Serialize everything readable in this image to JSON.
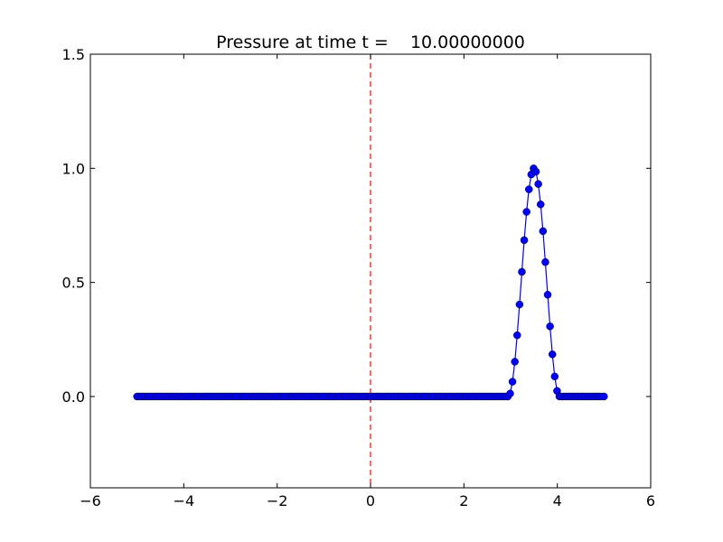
{
  "chart_data": {
    "type": "line",
    "title": "Pressure at time t =    10.00000000",
    "xlabel": "",
    "ylabel": "",
    "xlim": [
      -6,
      6
    ],
    "ylim": [
      -0.4,
      1.5
    ],
    "xticks": [
      -6,
      -4,
      -2,
      0,
      2,
      4,
      6
    ],
    "xtick_labels": [
      "−6",
      "−4",
      "−2",
      "0",
      "2",
      "4",
      "6"
    ],
    "yticks": [
      0.0,
      0.5,
      1.0,
      1.5
    ],
    "ytick_labels": [
      "0.0",
      "0.5",
      "1.0",
      "1.5"
    ],
    "grid": false,
    "series_style": {
      "line_color": "#0000ff",
      "marker_color": "#0000ff",
      "marker": "circle"
    },
    "reference_line": {
      "x": 0,
      "style": "dashed",
      "color": "#ff0000"
    },
    "series": [
      {
        "x_range": [
          -5,
          5
        ],
        "num_points": 200,
        "pulse": {
          "x_start": 2.95,
          "x_end": 4.05,
          "peak": 1.0,
          "shape": "cos-squared"
        },
        "baseline": 0.0
      }
    ]
  }
}
